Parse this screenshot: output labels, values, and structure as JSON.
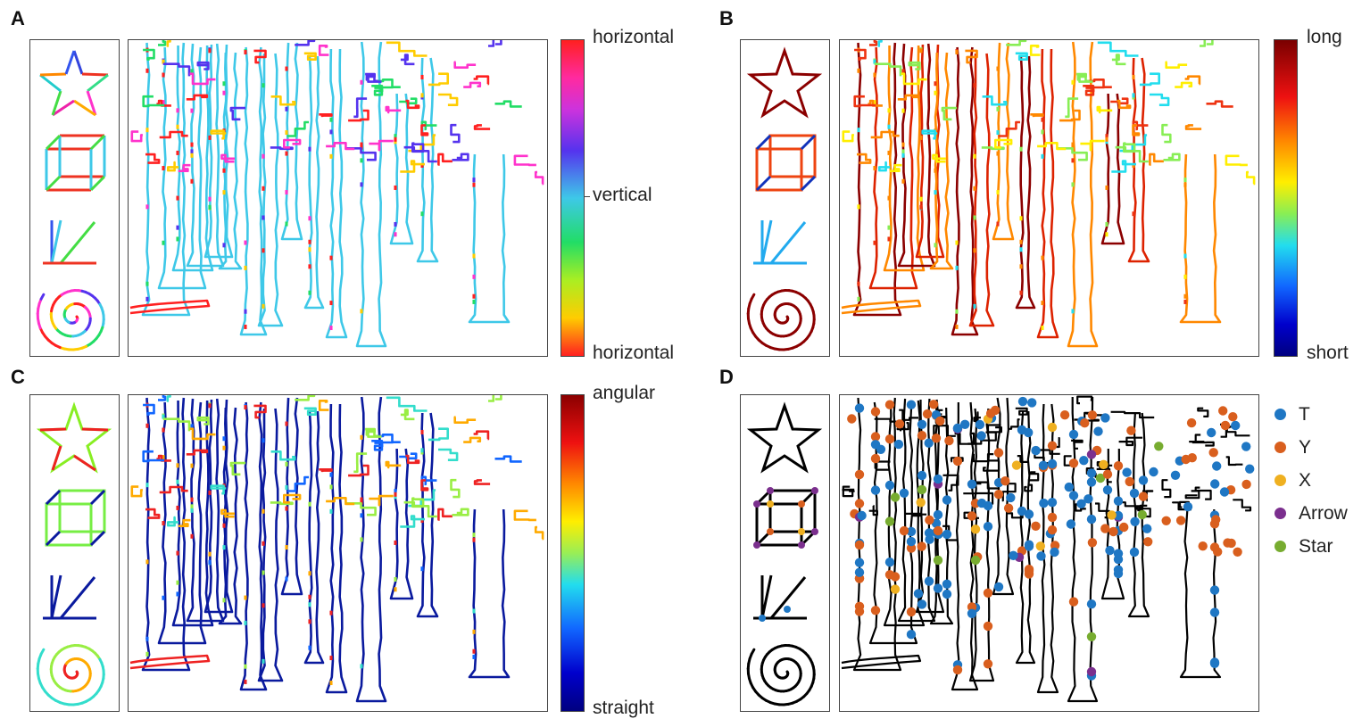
{
  "panels": [
    {
      "letter": "A",
      "cbar_top": "horizontal",
      "cbar_mid": "vertical",
      "cbar_bottom": "horizontal"
    },
    {
      "letter": "B",
      "cbar_top": "long",
      "cbar_bottom": "short"
    },
    {
      "letter": "C",
      "cbar_top": "angular",
      "cbar_bottom": "straight"
    },
    {
      "letter": "D"
    }
  ],
  "legend": [
    {
      "label": "T",
      "color": "#1f77c4"
    },
    {
      "label": "Y",
      "color": "#d95f1e"
    },
    {
      "label": "X",
      "color": "#efb020"
    },
    {
      "label": "Arrow",
      "color": "#7b2f8e"
    },
    {
      "label": "Star",
      "color": "#77ac30"
    }
  ],
  "colors": {
    "orientation_vertical": "#3ec8e8",
    "length_long": "#8b0000",
    "curvature_straight": "#0a1a9e",
    "line_black": "#000000"
  },
  "icons": [
    "star-icon",
    "cube-icon",
    "junction-icon",
    "spiral-icon"
  ]
}
